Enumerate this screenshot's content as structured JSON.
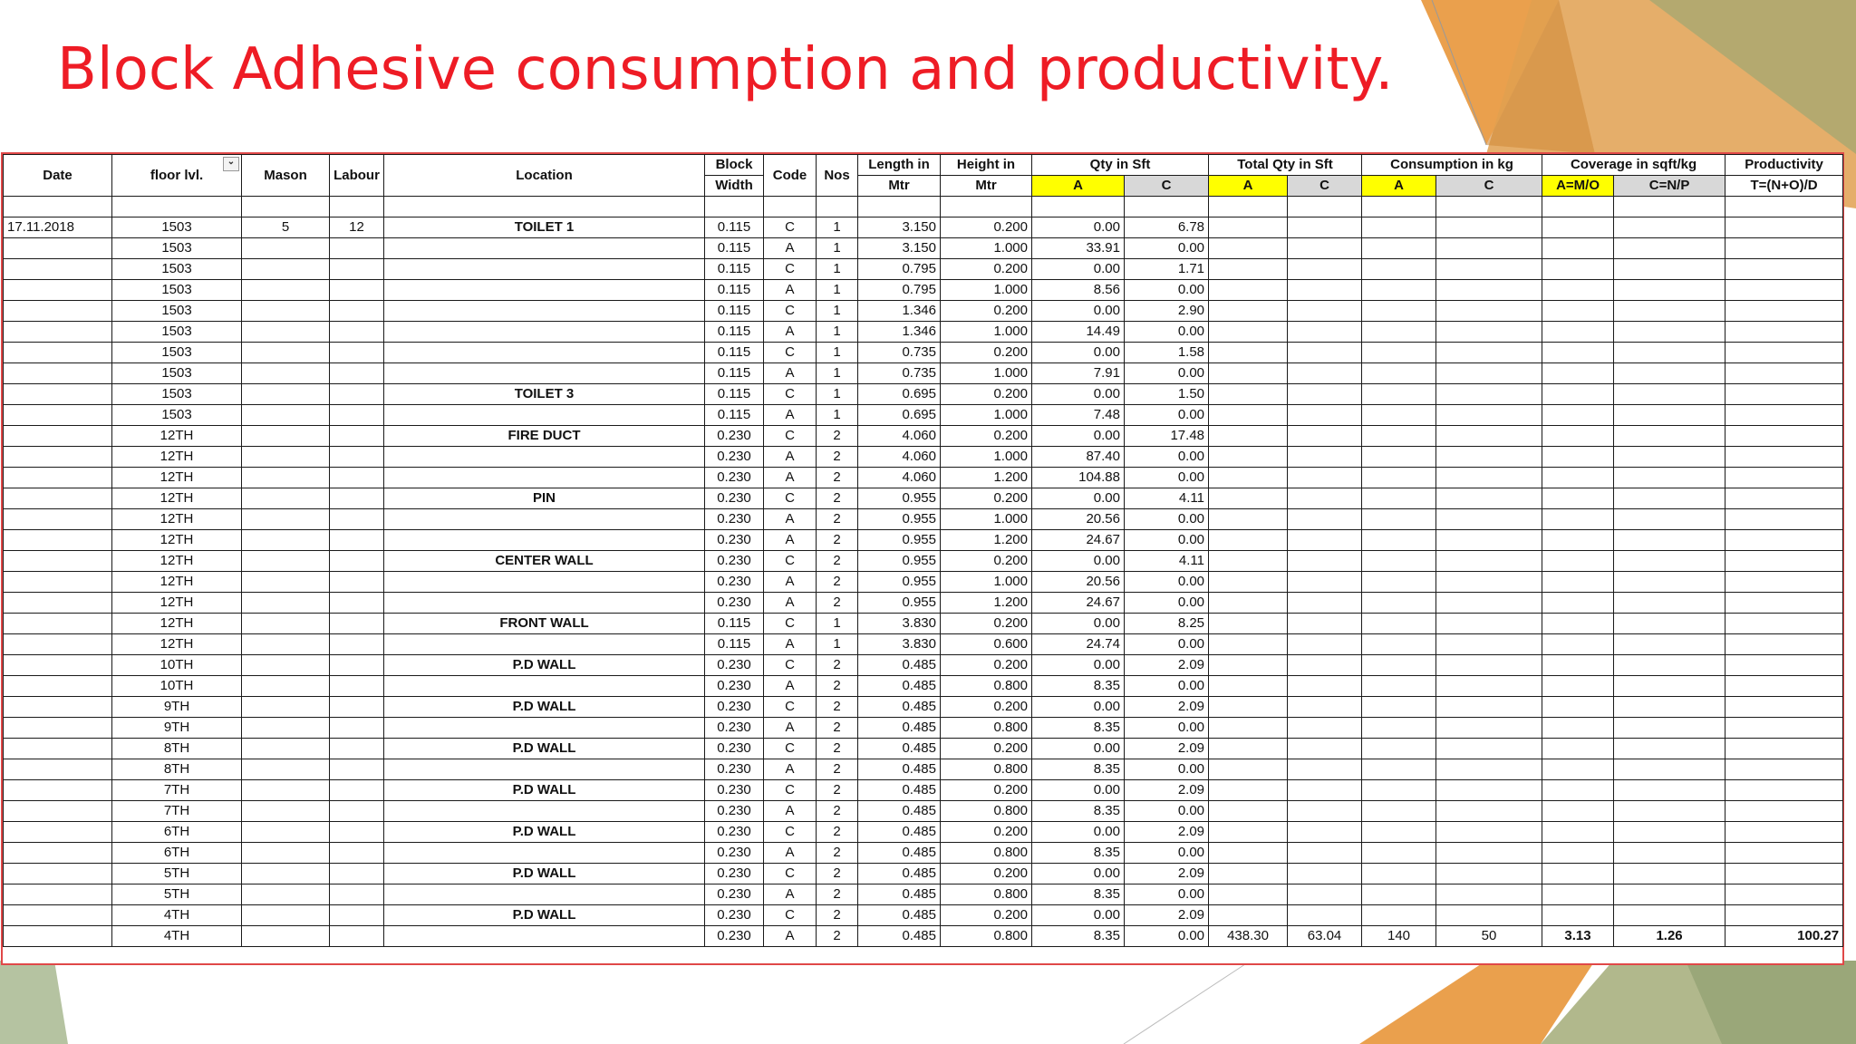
{
  "title": "Block Adhesive consumption and productivity.",
  "colors": {
    "title": "#ee1c25",
    "highlight_a": "#ffff00",
    "highlight_c": "#d8d8d8",
    "sheet_border": "#e04848"
  },
  "header": {
    "date": "Date",
    "floor": "floor lvl.",
    "mason": "Mason",
    "labour": "Labour",
    "location": "Location",
    "block_width_1": "Block",
    "block_width_2": "Width",
    "code": "Code",
    "nos": "Nos",
    "length_1": "Length in",
    "length_2": "Mtr",
    "height_1": "Height in",
    "height_2": "Mtr",
    "qty_sft": "Qty in Sft",
    "total_qty": "Total Qty in Sft",
    "consumption": "Consumption in kg",
    "coverage": "Coverage in sqft/kg",
    "productivity": "Productivity",
    "sub": {
      "qty_a": "A",
      "qty_c": "C",
      "total_a": "A",
      "total_c": "C",
      "cons_a": "A",
      "cons_c": "C",
      "cov_a": "A=M/O",
      "cov_c": "C=N/P",
      "prod": "T=(N+O)/D"
    }
  },
  "filter_icon": "filter-dropdown-icon",
  "rows": [
    {
      "date": "17.11.2018",
      "floor": "1503",
      "mason": "5",
      "labour": "12",
      "location": "TOILET 1",
      "width": "0.115",
      "code": "C",
      "nos": "1",
      "length": "3.150",
      "height": "0.200",
      "qa": "0.00",
      "qc": "6.78"
    },
    {
      "floor": "1503",
      "width": "0.115",
      "code": "A",
      "nos": "1",
      "length": "3.150",
      "height": "1.000",
      "qa": "33.91",
      "qc": "0.00"
    },
    {
      "floor": "1503",
      "width": "0.115",
      "code": "C",
      "nos": "1",
      "length": "0.795",
      "height": "0.200",
      "qa": "0.00",
      "qc": "1.71"
    },
    {
      "floor": "1503",
      "width": "0.115",
      "code": "A",
      "nos": "1",
      "length": "0.795",
      "height": "1.000",
      "qa": "8.56",
      "qc": "0.00"
    },
    {
      "floor": "1503",
      "width": "0.115",
      "code": "C",
      "nos": "1",
      "length": "1.346",
      "height": "0.200",
      "qa": "0.00",
      "qc": "2.90"
    },
    {
      "floor": "1503",
      "width": "0.115",
      "code": "A",
      "nos": "1",
      "length": "1.346",
      "height": "1.000",
      "qa": "14.49",
      "qc": "0.00"
    },
    {
      "floor": "1503",
      "width": "0.115",
      "code": "C",
      "nos": "1",
      "length": "0.735",
      "height": "0.200",
      "qa": "0.00",
      "qc": "1.58"
    },
    {
      "floor": "1503",
      "width": "0.115",
      "code": "A",
      "nos": "1",
      "length": "0.735",
      "height": "1.000",
      "qa": "7.91",
      "qc": "0.00"
    },
    {
      "floor": "1503",
      "location": "TOILET 3",
      "width": "0.115",
      "code": "C",
      "nos": "1",
      "length": "0.695",
      "height": "0.200",
      "qa": "0.00",
      "qc": "1.50"
    },
    {
      "floor": "1503",
      "width": "0.115",
      "code": "A",
      "nos": "1",
      "length": "0.695",
      "height": "1.000",
      "qa": "7.48",
      "qc": "0.00"
    },
    {
      "floor": "12TH",
      "location": "FIRE DUCT",
      "width": "0.230",
      "code": "C",
      "nos": "2",
      "length": "4.060",
      "height": "0.200",
      "qa": "0.00",
      "qc": "17.48"
    },
    {
      "floor": "12TH",
      "width": "0.230",
      "code": "A",
      "nos": "2",
      "length": "4.060",
      "height": "1.000",
      "qa": "87.40",
      "qc": "0.00"
    },
    {
      "floor": "12TH",
      "width": "0.230",
      "code": "A",
      "nos": "2",
      "length": "4.060",
      "height": "1.200",
      "qa": "104.88",
      "qc": "0.00"
    },
    {
      "floor": "12TH",
      "location": "PIN",
      "width": "0.230",
      "code": "C",
      "nos": "2",
      "length": "0.955",
      "height": "0.200",
      "qa": "0.00",
      "qc": "4.11"
    },
    {
      "floor": "12TH",
      "width": "0.230",
      "code": "A",
      "nos": "2",
      "length": "0.955",
      "height": "1.000",
      "qa": "20.56",
      "qc": "0.00"
    },
    {
      "floor": "12TH",
      "width": "0.230",
      "code": "A",
      "nos": "2",
      "length": "0.955",
      "height": "1.200",
      "qa": "24.67",
      "qc": "0.00"
    },
    {
      "floor": "12TH",
      "location": "CENTER WALL",
      "width": "0.230",
      "code": "C",
      "nos": "2",
      "length": "0.955",
      "height": "0.200",
      "qa": "0.00",
      "qc": "4.11"
    },
    {
      "floor": "12TH",
      "width": "0.230",
      "code": "A",
      "nos": "2",
      "length": "0.955",
      "height": "1.000",
      "qa": "20.56",
      "qc": "0.00"
    },
    {
      "floor": "12TH",
      "width": "0.230",
      "code": "A",
      "nos": "2",
      "length": "0.955",
      "height": "1.200",
      "qa": "24.67",
      "qc": "0.00"
    },
    {
      "floor": "12TH",
      "location": "FRONT WALL",
      "width": "0.115",
      "code": "C",
      "nos": "1",
      "length": "3.830",
      "height": "0.200",
      "qa": "0.00",
      "qc": "8.25"
    },
    {
      "floor": "12TH",
      "width": "0.115",
      "code": "A",
      "nos": "1",
      "length": "3.830",
      "height": "0.600",
      "qa": "24.74",
      "qc": "0.00"
    },
    {
      "floor": "10TH",
      "location": "P.D WALL",
      "width": "0.230",
      "code": "C",
      "nos": "2",
      "length": "0.485",
      "height": "0.200",
      "qa": "0.00",
      "qc": "2.09"
    },
    {
      "floor": "10TH",
      "width": "0.230",
      "code": "A",
      "nos": "2",
      "length": "0.485",
      "height": "0.800",
      "qa": "8.35",
      "qc": "0.00"
    },
    {
      "floor": "9TH",
      "location": "P.D WALL",
      "width": "0.230",
      "code": "C",
      "nos": "2",
      "length": "0.485",
      "height": "0.200",
      "qa": "0.00",
      "qc": "2.09"
    },
    {
      "floor": "9TH",
      "width": "0.230",
      "code": "A",
      "nos": "2",
      "length": "0.485",
      "height": "0.800",
      "qa": "8.35",
      "qc": "0.00"
    },
    {
      "floor": "8TH",
      "location": "P.D WALL",
      "width": "0.230",
      "code": "C",
      "nos": "2",
      "length": "0.485",
      "height": "0.200",
      "qa": "0.00",
      "qc": "2.09"
    },
    {
      "floor": "8TH",
      "width": "0.230",
      "code": "A",
      "nos": "2",
      "length": "0.485",
      "height": "0.800",
      "qa": "8.35",
      "qc": "0.00"
    },
    {
      "floor": "7TH",
      "location": "P.D WALL",
      "width": "0.230",
      "code": "C",
      "nos": "2",
      "length": "0.485",
      "height": "0.200",
      "qa": "0.00",
      "qc": "2.09"
    },
    {
      "floor": "7TH",
      "width": "0.230",
      "code": "A",
      "nos": "2",
      "length": "0.485",
      "height": "0.800",
      "qa": "8.35",
      "qc": "0.00"
    },
    {
      "floor": "6TH",
      "location": "P.D WALL",
      "width": "0.230",
      "code": "C",
      "nos": "2",
      "length": "0.485",
      "height": "0.200",
      "qa": "0.00",
      "qc": "2.09"
    },
    {
      "floor": "6TH",
      "width": "0.230",
      "code": "A",
      "nos": "2",
      "length": "0.485",
      "height": "0.800",
      "qa": "8.35",
      "qc": "0.00"
    },
    {
      "floor": "5TH",
      "location": "P.D WALL",
      "width": "0.230",
      "code": "C",
      "nos": "2",
      "length": "0.485",
      "height": "0.200",
      "qa": "0.00",
      "qc": "2.09"
    },
    {
      "floor": "5TH",
      "width": "0.230",
      "code": "A",
      "nos": "2",
      "length": "0.485",
      "height": "0.800",
      "qa": "8.35",
      "qc": "0.00"
    },
    {
      "floor": "4TH",
      "location": "P.D WALL",
      "width": "0.230",
      "code": "C",
      "nos": "2",
      "length": "0.485",
      "height": "0.200",
      "qa": "0.00",
      "qc": "2.09"
    },
    {
      "floor": "4TH",
      "width": "0.230",
      "code": "A",
      "nos": "2",
      "length": "0.485",
      "height": "0.800",
      "qa": "8.35",
      "qc": "0.00",
      "tqa": "438.30",
      "tqc": "63.04",
      "ca": "140",
      "cc": "50",
      "cova": "3.13",
      "covc": "1.26",
      "prod": "100.27"
    }
  ]
}
